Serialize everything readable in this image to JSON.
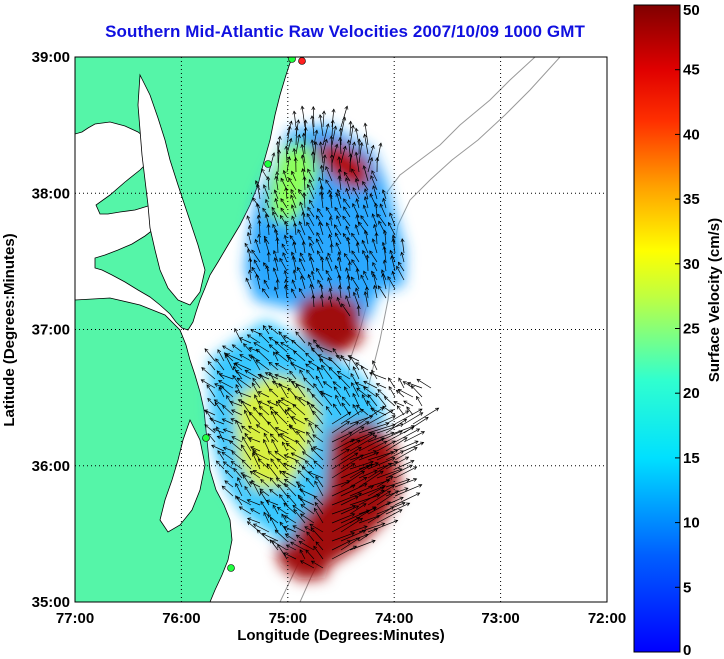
{
  "title": "Southern Mid-Atlantic Raw Velocities 2007/10/09 1000 GMT",
  "xlabel": "Longitude (Degrees:Minutes)",
  "ylabel": "Latitude (Degrees:Minutes)",
  "colorbar": {
    "label": "Surface Velocity (cm/s)",
    "min": 0,
    "max": 50,
    "ticks": [
      "0",
      "5",
      "10",
      "15",
      "20",
      "25",
      "30",
      "35",
      "40",
      "45",
      "50"
    ]
  },
  "colors": {
    "land": "#55f5a8",
    "title": "#1010e0",
    "grid": "#000000"
  },
  "chart_data": {
    "type": "heatmap",
    "x_ticks": [
      "77:00",
      "76:00",
      "75:00",
      "74:00",
      "73:00",
      "72:00"
    ],
    "y_ticks": [
      "39:00",
      "38:00",
      "37:00",
      "36:00",
      "35:00"
    ],
    "xlim": [
      -77,
      -72
    ],
    "ylim": [
      35,
      39
    ],
    "grid": true,
    "regions": [
      {
        "name": "north-field",
        "approx_speed_cms": 12
      },
      {
        "name": "northeast-core",
        "approx_speed_cms": 48
      },
      {
        "name": "bay-mouth-core",
        "approx_speed_cms": 47
      },
      {
        "name": "south-field",
        "approx_speed_cms": 20
      },
      {
        "name": "southeast-jet",
        "approx_speed_cms": 50
      }
    ]
  }
}
